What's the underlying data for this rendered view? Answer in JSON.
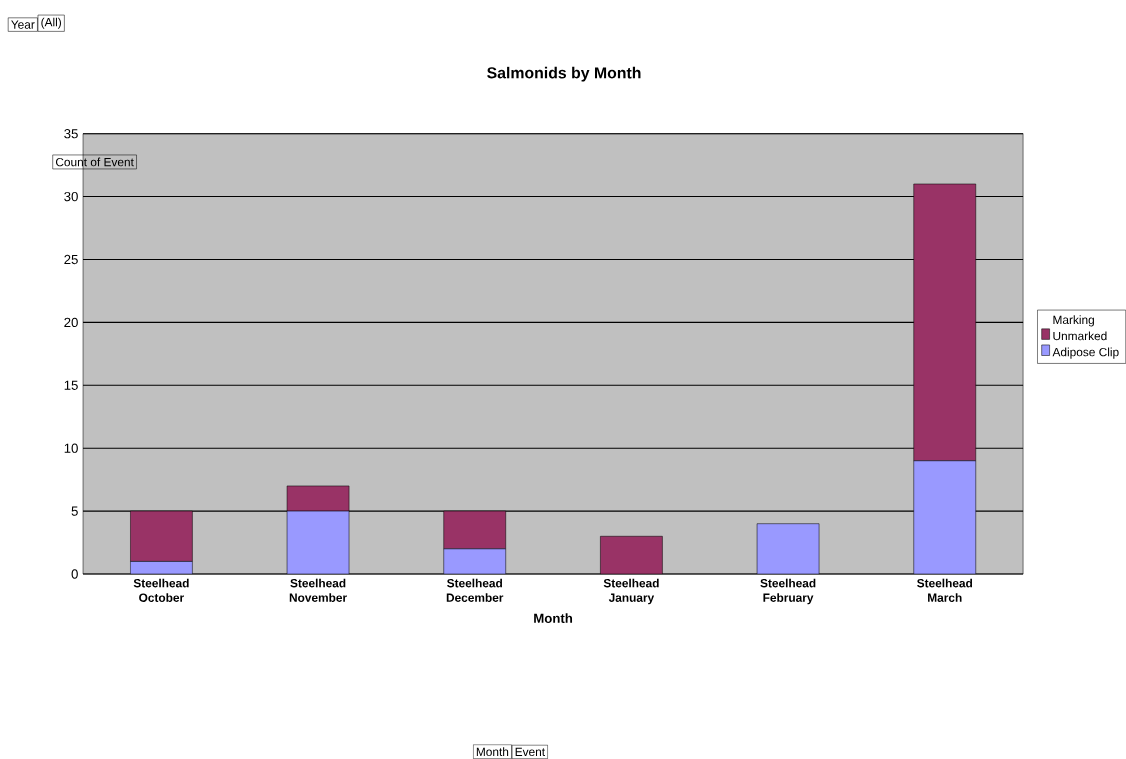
{
  "chart_data": {
    "type": "bar",
    "stacked": true,
    "title": "Salmonids by Month",
    "xlabel": "Month",
    "ylabel": "Count of Event",
    "legend_title": "Marking",
    "categories": [
      "Steelhead October",
      "Steelhead November",
      "Steelhead December",
      "Steelhead January",
      "Steelhead February",
      "Steelhead March"
    ],
    "series": [
      {
        "name": "Adipose Clip",
        "color": "#9999ff",
        "values": [
          1,
          5,
          2,
          0,
          4,
          9
        ]
      },
      {
        "name": "Unmarked",
        "color": "#993366",
        "values": [
          4,
          2,
          3,
          3,
          0,
          22
        ]
      }
    ],
    "ylim": [
      0,
      35
    ],
    "yticks": [
      0,
      5,
      10,
      15,
      20,
      25,
      30,
      35
    ],
    "grid": "y",
    "legend": "right",
    "annotations": [
      "Year",
      "(All)",
      "Month",
      "Event"
    ]
  }
}
